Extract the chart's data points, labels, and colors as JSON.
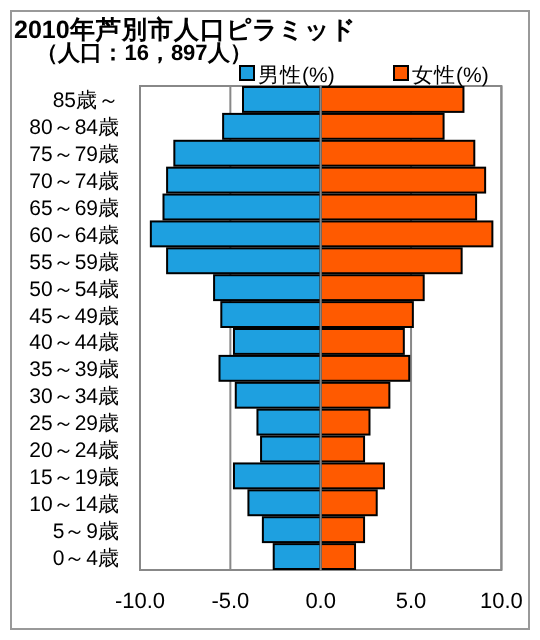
{
  "chart_data": {
    "type": "bar",
    "orientation": "horizontal",
    "stacked": true,
    "title": "2010年芦別市人口ピラミッド",
    "subtitle": "（人口：16，897人）",
    "categories": [
      "85歳～",
      "80～84歳",
      "75～79歳",
      "70～74歳",
      "65～69歳",
      "60～64歳",
      "55～59歳",
      "50～54歳",
      "45～49歳",
      "40～44歳",
      "35～39歳",
      "30～34歳",
      "25～29歳",
      "20～24歳",
      "15～19歳",
      "10～14歳",
      "5～9歳",
      "0～4歳"
    ],
    "series": [
      {
        "name": "男性(%)",
        "color": "#1ea0e0",
        "values": [
          -4.3,
          -5.4,
          -8.1,
          -8.5,
          -8.7,
          -9.4,
          -8.5,
          -5.9,
          -5.5,
          -4.8,
          -5.6,
          -4.7,
          -3.5,
          -3.3,
          -4.8,
          -4.0,
          -3.2,
          -2.6
        ]
      },
      {
        "name": "女性(%)",
        "color": "#ff5a00",
        "values": [
          7.9,
          6.8,
          8.5,
          9.1,
          8.6,
          9.5,
          7.8,
          5.7,
          5.1,
          4.6,
          4.9,
          3.8,
          2.7,
          2.4,
          3.5,
          3.1,
          2.4,
          1.9
        ]
      }
    ],
    "xlim": [
      -10,
      10
    ],
    "xticks": [
      {
        "value": -10,
        "label": "-10.0"
      },
      {
        "value": -5,
        "label": "-5.0"
      },
      {
        "value": 0,
        "label": "0.0"
      },
      {
        "value": 5,
        "label": "5.0"
      },
      {
        "value": 10,
        "label": "10.0"
      }
    ],
    "grid": "x",
    "legend": "top"
  }
}
